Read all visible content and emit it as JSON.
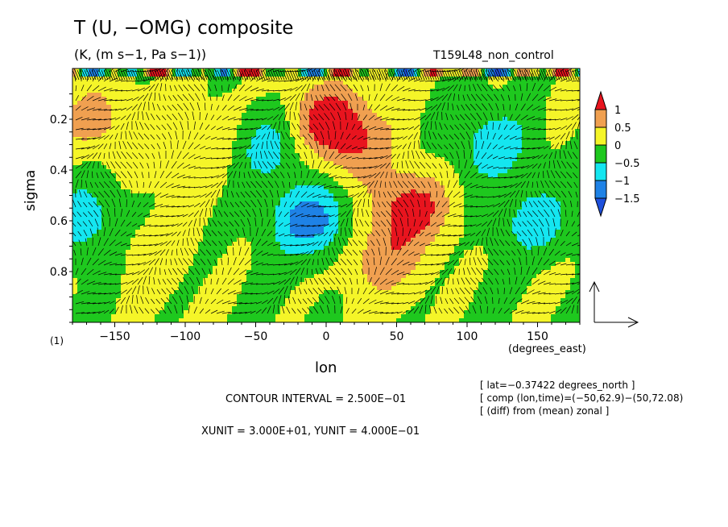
{
  "header": {
    "title": "T (U, −OMG) composite",
    "units": "(K, (m s−1, Pa s−1))",
    "run_name": "T159L48_non_control"
  },
  "footer": {
    "unit_note": "(1)",
    "x_units": "(degrees_east)",
    "contour_interval": "CONTOUR INTERVAL = 2.500E−01",
    "xy_unit": "XUNIT = 3.000E+01, YUNIT = 4.000E−01",
    "info_lines": [
      "[ lat=−0.37422 degrees_north ]",
      "[ comp (lon,time)=(−50,62.9)−(50,72.08)",
      "[ (diff) from (mean) zonal ]"
    ]
  },
  "colorbar": {
    "labels": [
      "1",
      "0.5",
      "0",
      "−0.5",
      "−1",
      "−1.5"
    ],
    "colors": [
      "#e8141e",
      "#f0a050",
      "#f5f528",
      "#1ec81e",
      "#14e6f0",
      "#1e82e6",
      "#1e50dc"
    ]
  },
  "chart_data": {
    "type": "heatmap",
    "subtype": "filled contour with vector overlay",
    "xlabel": "lon",
    "ylabel": "sigma",
    "x_ticks": [
      -150,
      -100,
      -50,
      0,
      50,
      100,
      150
    ],
    "y_ticks": [
      0.2,
      0.4,
      0.6,
      0.8
    ],
    "xlim": [
      -180,
      180
    ],
    "ylim": [
      1.0,
      0.0
    ],
    "y_axis_inverted": true,
    "contour_levels": [
      -1.5,
      -1,
      -0.5,
      0,
      0.5,
      1
    ],
    "colors": {
      "gt_1": "#e8141e",
      "0.5_to_1": "#f0a050",
      "0_to_0.5": "#f5f528",
      "-0.5_to_0": "#1ec81e",
      "-1_to_-0.5": "#14e6f0",
      "-1.5_to_-1": "#1e82e6",
      "lt_-1.5": "#1e50dc"
    },
    "features": [
      {
        "lon": -165,
        "sigma": 0.2,
        "value": 0.75
      },
      {
        "lon": -130,
        "sigma": 0.7,
        "value": 0.25
      },
      {
        "lon": -100,
        "sigma": 0.35,
        "value": 0.25
      },
      {
        "lon": -75,
        "sigma": 0.25,
        "value": 0.25
      },
      {
        "lon": -40,
        "sigma": 0.3,
        "value": -0.75
      },
      {
        "lon": -10,
        "sigma": 0.6,
        "value": -1.25
      },
      {
        "lon": 0,
        "sigma": 0.2,
        "value": 1.25
      },
      {
        "lon": 20,
        "sigma": 0.3,
        "value": 0.75
      },
      {
        "lon": 60,
        "sigma": 0.55,
        "value": 1.25
      },
      {
        "lon": 40,
        "sigma": 0.75,
        "value": 0.75
      },
      {
        "lon": 120,
        "sigma": 0.3,
        "value": -0.75
      },
      {
        "lon": 150,
        "sigma": 0.6,
        "value": -0.75
      },
      {
        "lon": -170,
        "sigma": 0.6,
        "value": -0.75
      }
    ],
    "vector_reference": {
      "x": "U",
      "y": "−OMG"
    }
  }
}
